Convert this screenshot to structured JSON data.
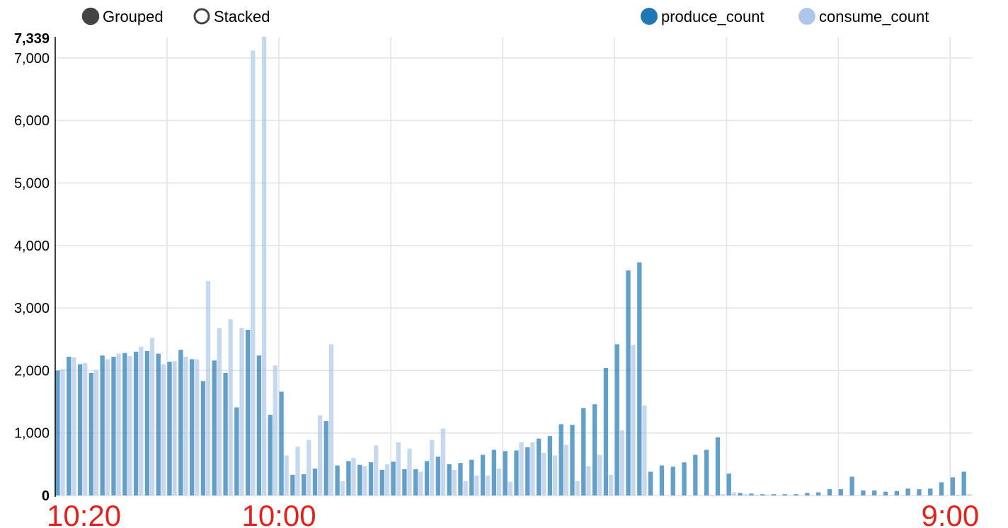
{
  "controls": {
    "grouped_label": "Grouped",
    "stacked_label": "Stacked",
    "selected": "grouped"
  },
  "colors": {
    "produce": "#1f77b4",
    "consume": "#aec7e8",
    "x_label": "#e3211c"
  },
  "chart_data": {
    "type": "bar",
    "mode": "grouped",
    "ylim": [
      0,
      7339
    ],
    "y_max_label": "7,339",
    "y_ticks": [
      0,
      1000,
      2000,
      3000,
      4000,
      5000,
      6000,
      7000
    ],
    "y_tick_labels": [
      "0",
      "1,000",
      "2,000",
      "3,000",
      "4,000",
      "5,000",
      "6,000",
      "7,000"
    ],
    "x_labels": [
      {
        "text": "10:20",
        "at_index": 0
      },
      {
        "text": "10:00",
        "at_index": 20
      },
      {
        "text": "9:00",
        "at_index": 80
      }
    ],
    "legend_position": "top-right",
    "grid": true,
    "series": [
      {
        "name": "produce_count",
        "values": [
          2000,
          2220,
          2100,
          1960,
          2240,
          2220,
          2280,
          2300,
          2310,
          2270,
          2140,
          2330,
          2180,
          1830,
          2160,
          1960,
          1410,
          2650,
          2240,
          1290,
          1660,
          330,
          340,
          430,
          1190,
          480,
          550,
          490,
          530,
          410,
          540,
          420,
          420,
          550,
          620,
          500,
          520,
          570,
          650,
          730,
          710,
          720,
          770,
          910,
          950,
          1140,
          1130,
          1400,
          1460,
          2040,
          2420,
          3600,
          3730,
          380,
          480,
          460,
          530,
          650,
          730,
          930,
          350,
          40,
          30,
          20,
          20,
          20,
          20,
          40,
          50,
          100,
          100,
          300,
          80,
          80,
          60,
          70,
          110,
          100,
          110,
          210,
          290,
          380
        ]
      },
      {
        "name": "consume_count",
        "values": [
          2020,
          2210,
          2120,
          2000,
          2180,
          2270,
          2230,
          2380,
          2520,
          2100,
          2150,
          2220,
          2180,
          3430,
          2680,
          2820,
          2680,
          7120,
          7339,
          2080,
          640,
          780,
          890,
          1280,
          2420,
          230,
          600,
          470,
          800,
          500,
          850,
          750,
          380,
          890,
          1070,
          410,
          230,
          320,
          320,
          430,
          220,
          850,
          850,
          680,
          640,
          810,
          230,
          470,
          650,
          330,
          1040,
          2410,
          1440,
          0,
          0,
          0,
          0,
          0,
          10,
          20,
          50,
          20,
          10,
          10,
          0,
          0,
          0,
          0,
          0,
          0,
          0,
          0,
          0,
          0,
          0,
          0,
          0,
          0,
          0,
          0,
          10,
          20
        ]
      }
    ]
  }
}
